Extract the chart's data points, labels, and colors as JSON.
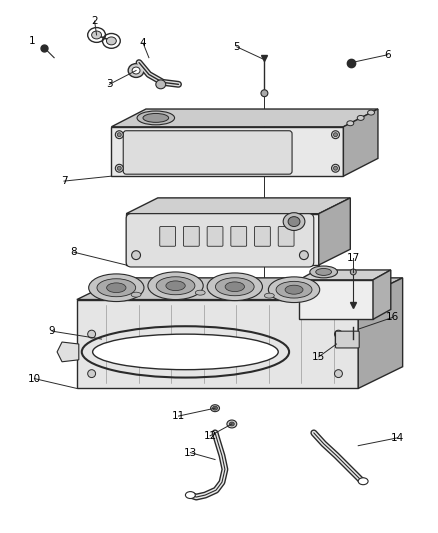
{
  "bg_color": "#ffffff",
  "line_color": "#2a2a2a",
  "label_color": "#000000",
  "figsize": [
    4.38,
    5.33
  ],
  "dpi": 100,
  "label_fs": 7.5
}
